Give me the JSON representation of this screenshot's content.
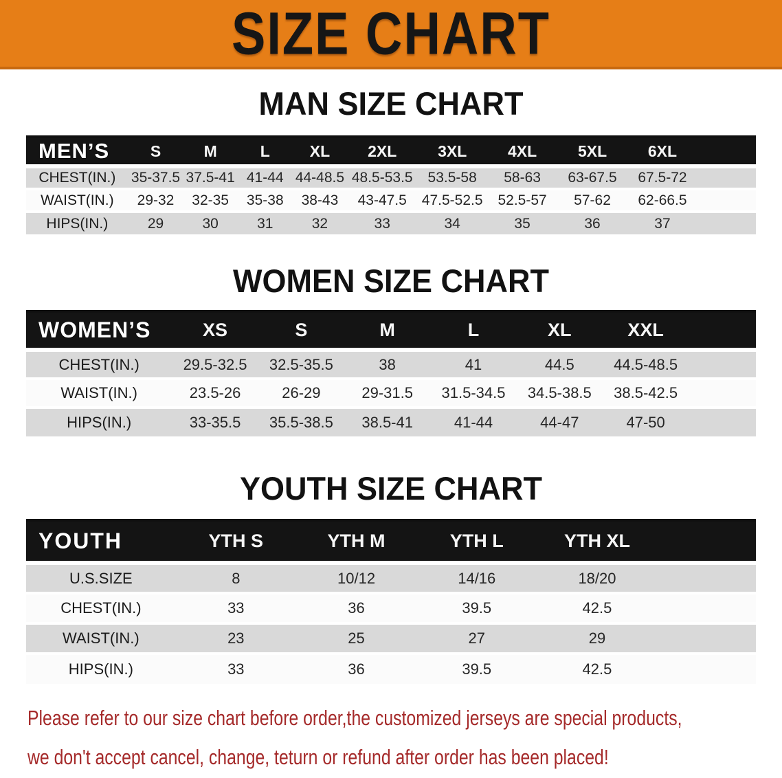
{
  "banner": {
    "title": "SIZE CHART"
  },
  "colors": {
    "banner_bg": "#E67E17",
    "banner_border": "#C8690F",
    "header_bg": "#141414",
    "row_gray": "#D9D9D9",
    "row_white": "#FBFBFB",
    "disclaimer": "#A52A2A"
  },
  "sections": [
    {
      "id": "men",
      "title": "MAN SIZE CHART",
      "header_label": "MEN’S",
      "columns": [
        "S",
        "M",
        "L",
        "XL",
        "2XL",
        "3XL",
        "4XL",
        "5XL",
        "6XL"
      ],
      "rows": [
        {
          "label": "CHEST(IN.)",
          "values": [
            "35-37.5",
            "37.5-41",
            "41-44",
            "44-48.5",
            "48.5-53.5",
            "53.5-58",
            "58-63",
            "63-67.5",
            "67.5-72"
          ]
        },
        {
          "label": "WAIST(IN.)",
          "values": [
            "29-32",
            "32-35",
            "35-38",
            "38-43",
            "43-47.5",
            "47.5-52.5",
            "52.5-57",
            "57-62",
            "62-66.5"
          ]
        },
        {
          "label": "HIPS(IN.)",
          "values": [
            "29",
            "30",
            "31",
            "32",
            "33",
            "34",
            "35",
            "36",
            "37"
          ]
        }
      ]
    },
    {
      "id": "women",
      "title": "WOMEN SIZE CHART",
      "header_label": "WOMEN’S",
      "columns": [
        "XS",
        "S",
        "M",
        "L",
        "XL",
        "XXL"
      ],
      "rows": [
        {
          "label": "CHEST(IN.)",
          "values": [
            "29.5-32.5",
            "32.5-35.5",
            "38",
            "41",
            "44.5",
            "44.5-48.5"
          ]
        },
        {
          "label": "WAIST(IN.)",
          "values": [
            "23.5-26",
            "26-29",
            "29-31.5",
            "31.5-34.5",
            "34.5-38.5",
            "38.5-42.5"
          ]
        },
        {
          "label": "HIPS(IN.)",
          "values": [
            "33-35.5",
            "35.5-38.5",
            "38.5-41",
            "41-44",
            "44-47",
            "47-50"
          ]
        }
      ]
    },
    {
      "id": "youth",
      "title": "YOUTH SIZE CHART",
      "header_label": "YOUTH",
      "columns": [
        "YTH S",
        "YTH M",
        "YTH L",
        "YTH XL"
      ],
      "rows": [
        {
          "label": "U.S.SIZE",
          "values": [
            "8",
            "10/12",
            "14/16",
            "18/20"
          ]
        },
        {
          "label": "CHEST(IN.)",
          "values": [
            "33",
            "36",
            "39.5",
            "42.5"
          ]
        },
        {
          "label": "WAIST(IN.)",
          "values": [
            "23",
            "25",
            "27",
            "29"
          ]
        },
        {
          "label": "HIPS(IN.)",
          "values": [
            "33",
            "36",
            "39.5",
            "42.5"
          ]
        }
      ]
    }
  ],
  "disclaimer": {
    "line1": "Please refer to our size chart before order,the customized jerseys are special products,",
    "line2": "we don't accept cancel, change, teturn or refund after order has been placed!"
  }
}
